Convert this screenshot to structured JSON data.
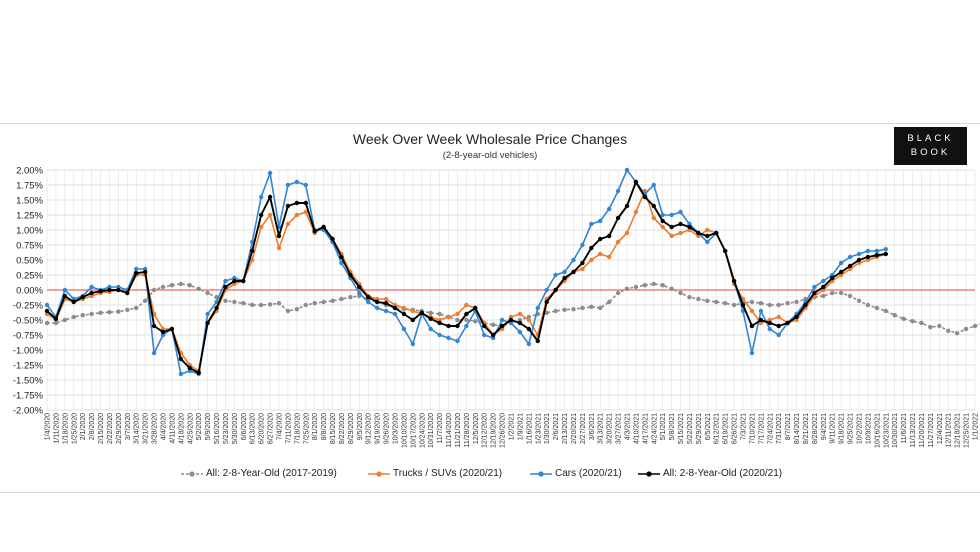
{
  "chart_data": {
    "type": "line",
    "title": "Week Over Week Wholesale Price Changes",
    "subtitle": "(2-8-year-old vehicles)",
    "logo_lines": [
      "BLACK",
      "BOOK"
    ],
    "ylim": [
      -2.0,
      2.0
    ],
    "y_ticks": [
      "2.00%",
      "1.75%",
      "1.50%",
      "1.25%",
      "1.00%",
      "0.75%",
      "0.50%",
      "0.25%",
      "0.00%",
      "-0.25%",
      "-0.50%",
      "-0.75%",
      "-1.00%",
      "-1.25%",
      "-1.50%",
      "-1.75%",
      "-2.00%"
    ],
    "x_tick_labels": [
      "1/4/2020",
      "1/11/2020",
      "1/18/2020",
      "1/25/2020",
      "2/1/2020",
      "2/8/2020",
      "2/15/2020",
      "2/22/2020",
      "2/29/2020",
      "3/7/2020",
      "3/14/2020",
      "3/21/2020",
      "3/28/2020",
      "4/4/2020",
      "4/11/2020",
      "4/18/2020",
      "4/25/2020",
      "5/2/2020",
      "5/9/2020",
      "5/16/2020",
      "5/23/2020",
      "5/30/2020",
      "6/6/2020",
      "6/13/2020",
      "6/20/2020",
      "6/27/2020",
      "7/4/2020",
      "7/11/2020",
      "7/18/2020",
      "7/25/2020",
      "8/1/2020",
      "8/8/2020",
      "8/15/2020",
      "8/22/2020",
      "8/29/2020",
      "9/5/2020",
      "9/12/2020",
      "9/19/2020",
      "9/26/2020",
      "10/3/2020",
      "10/10/2020",
      "10/17/2020",
      "10/24/2020",
      "10/31/2020",
      "11/7/2020",
      "11/14/2020",
      "11/21/2020",
      "11/28/2020",
      "12/5/2020",
      "12/12/2020",
      "12/19/2020",
      "12/26/2020",
      "1/2/2021",
      "1/9/2021",
      "1/16/2021",
      "1/23/2021",
      "1/30/2021",
      "2/6/2021",
      "2/13/2021",
      "2/20/2021",
      "2/27/2021",
      "3/6/2021",
      "3/13/2021",
      "3/20/2021",
      "3/27/2021",
      "4/3/2021",
      "4/10/2021",
      "4/17/2021",
      "4/24/2021",
      "5/1/2021",
      "5/8/2021",
      "5/15/2021",
      "5/22/2021",
      "5/29/2021",
      "6/5/2021",
      "6/12/2021",
      "6/19/2021",
      "6/26/2021",
      "7/3/2021",
      "7/10/2021",
      "7/17/2021",
      "7/24/2021",
      "7/31/2021",
      "8/7/2021",
      "8/14/2021",
      "8/21/2021",
      "8/28/2021",
      "9/4/2021",
      "9/11/2021",
      "9/18/2021",
      "9/25/2021",
      "10/2/2021",
      "10/9/2021",
      "10/16/2021",
      "10/23/2021",
      "10/30/2021",
      "11/6/2021",
      "11/13/2021",
      "11/20/2021",
      "11/27/2021",
      "12/4/2021",
      "12/11/2021",
      "12/18/2021",
      "12/25/2021",
      "1/1/2022"
    ],
    "grid": true,
    "legend_position": "bottom",
    "series": [
      {
        "name": "All: 2-8-Year-Old (2017-2019)",
        "color": "#8c8c8c",
        "style": "dashed",
        "values": [
          -0.55,
          -0.55,
          -0.5,
          -0.45,
          -0.42,
          -0.4,
          -0.38,
          -0.37,
          -0.36,
          -0.33,
          -0.3,
          -0.18,
          0.0,
          0.05,
          0.08,
          0.1,
          0.08,
          0.02,
          -0.05,
          -0.12,
          -0.18,
          -0.2,
          -0.22,
          -0.25,
          -0.25,
          -0.24,
          -0.22,
          -0.35,
          -0.32,
          -0.25,
          -0.22,
          -0.2,
          -0.18,
          -0.15,
          -0.12,
          -0.1,
          -0.15,
          -0.2,
          -0.25,
          -0.3,
          -0.32,
          -0.33,
          -0.35,
          -0.38,
          -0.4,
          -0.45,
          -0.5,
          -0.5,
          -0.52,
          -0.55,
          -0.58,
          -0.6,
          -0.55,
          -0.5,
          -0.45,
          -0.4,
          -0.38,
          -0.35,
          -0.33,
          -0.32,
          -0.3,
          -0.28,
          -0.3,
          -0.2,
          -0.05,
          0.02,
          0.05,
          0.08,
          0.1,
          0.08,
          0.02,
          -0.05,
          -0.12,
          -0.15,
          -0.18,
          -0.2,
          -0.22,
          -0.25,
          -0.22,
          -0.2,
          -0.22,
          -0.25,
          -0.25,
          -0.22,
          -0.2,
          -0.15,
          -0.12,
          -0.1,
          -0.05,
          -0.05,
          -0.1,
          -0.18,
          -0.25,
          -0.3,
          -0.35,
          -0.42,
          -0.48,
          -0.52,
          -0.55,
          -0.62,
          -0.6,
          -0.68,
          -0.72,
          -0.65,
          -0.6,
          -0.55
        ]
      },
      {
        "name": "Trucks / SUVs (2020/21)",
        "color": "#ed7d31",
        "style": "solid",
        "values": [
          -0.4,
          -0.5,
          -0.15,
          -0.2,
          -0.15,
          -0.1,
          -0.05,
          -0.03,
          0.0,
          -0.05,
          0.25,
          0.25,
          -0.4,
          -0.65,
          -0.65,
          -1.05,
          -1.25,
          -1.35,
          -0.55,
          -0.35,
          0.0,
          0.1,
          0.15,
          0.5,
          1.05,
          1.25,
          0.7,
          1.1,
          1.25,
          1.3,
          0.95,
          1.05,
          0.85,
          0.6,
          0.3,
          0.1,
          -0.1,
          -0.15,
          -0.15,
          -0.25,
          -0.3,
          -0.35,
          -0.4,
          -0.45,
          -0.5,
          -0.45,
          -0.4,
          -0.25,
          -0.3,
          -0.55,
          -0.75,
          -0.65,
          -0.45,
          -0.4,
          -0.5,
          -0.75,
          -0.15,
          0.0,
          0.15,
          0.3,
          0.35,
          0.5,
          0.6,
          0.55,
          0.8,
          0.95,
          1.3,
          1.65,
          1.2,
          1.05,
          0.9,
          0.95,
          1.0,
          0.9,
          1.0,
          0.95,
          0.65,
          0.1,
          -0.15,
          -0.35,
          -0.55,
          -0.5,
          -0.45,
          -0.55,
          -0.5,
          -0.3,
          -0.1,
          0.0,
          0.15,
          0.25,
          0.35,
          0.45,
          0.5,
          0.55,
          0.6
        ]
      },
      {
        "name": "Cars (2020/21)",
        "color": "#2f86d6",
        "style": "solid",
        "values": [
          -0.25,
          -0.45,
          0.0,
          -0.15,
          -0.1,
          0.05,
          0.0,
          0.05,
          0.05,
          0.0,
          0.35,
          0.35,
          -1.05,
          -0.75,
          -0.65,
          -1.4,
          -1.35,
          -1.4,
          -0.4,
          -0.2,
          0.15,
          0.2,
          0.15,
          0.8,
          1.55,
          1.95,
          1.05,
          1.75,
          1.8,
          1.75,
          1.0,
          1.0,
          0.8,
          0.45,
          0.2,
          -0.05,
          -0.2,
          -0.3,
          -0.35,
          -0.4,
          -0.65,
          -0.9,
          -0.4,
          -0.65,
          -0.75,
          -0.8,
          -0.85,
          -0.6,
          -0.35,
          -0.75,
          -0.8,
          -0.5,
          -0.55,
          -0.7,
          -0.9,
          -0.3,
          0.0,
          0.25,
          0.3,
          0.5,
          0.75,
          1.1,
          1.15,
          1.35,
          1.65,
          2.0,
          1.8,
          1.6,
          1.75,
          1.25,
          1.25,
          1.3,
          1.1,
          0.95,
          0.8,
          0.95,
          0.65,
          0.15,
          -0.35,
          -1.05,
          -0.35,
          -0.65,
          -0.75,
          -0.55,
          -0.4,
          -0.2,
          0.05,
          0.15,
          0.25,
          0.45,
          0.55,
          0.6,
          0.65,
          0.65,
          0.68
        ]
      },
      {
        "name": "All: 2-8-Year-Old (2020/21)",
        "color": "#000000",
        "style": "solid",
        "values": [
          -0.35,
          -0.48,
          -0.1,
          -0.2,
          -0.12,
          -0.05,
          -0.02,
          0.0,
          0.0,
          -0.05,
          0.28,
          0.3,
          -0.6,
          -0.7,
          -0.65,
          -1.15,
          -1.3,
          -1.38,
          -0.55,
          -0.3,
          0.05,
          0.15,
          0.15,
          0.65,
          1.25,
          1.55,
          0.9,
          1.4,
          1.45,
          1.45,
          0.98,
          1.05,
          0.85,
          0.55,
          0.25,
          0.05,
          -0.12,
          -0.2,
          -0.22,
          -0.3,
          -0.4,
          -0.5,
          -0.38,
          -0.48,
          -0.55,
          -0.6,
          -0.6,
          -0.4,
          -0.3,
          -0.6,
          -0.75,
          -0.6,
          -0.5,
          -0.55,
          -0.65,
          -0.85,
          -0.2,
          0.0,
          0.2,
          0.3,
          0.45,
          0.7,
          0.85,
          0.9,
          1.2,
          1.4,
          1.8,
          1.55,
          1.4,
          1.15,
          1.05,
          1.1,
          1.05,
          0.95,
          0.9,
          0.95,
          0.65,
          0.15,
          -0.25,
          -0.6,
          -0.5,
          -0.55,
          -0.6,
          -0.55,
          -0.45,
          -0.25,
          -0.05,
          0.05,
          0.2,
          0.3,
          0.4,
          0.5,
          0.55,
          0.58,
          0.6
        ]
      }
    ]
  }
}
